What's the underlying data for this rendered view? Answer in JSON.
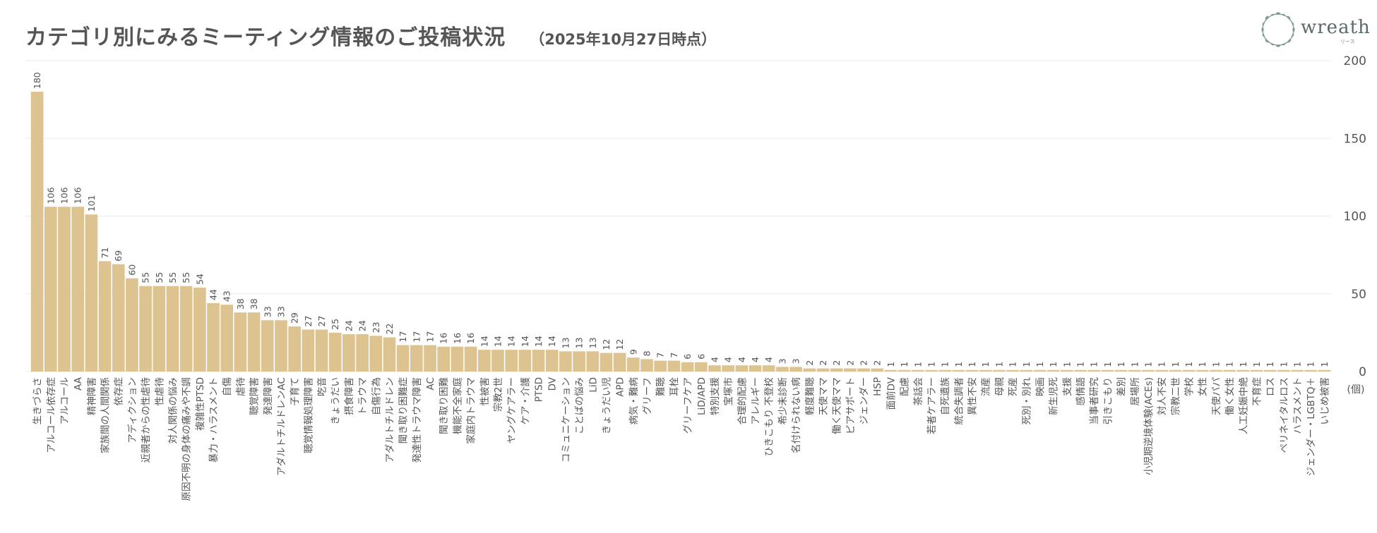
{
  "title": "カテゴリ別にみるミーティング情報のご投稿状況",
  "subtitle": "（2025年10月27日時点）",
  "logo": {
    "text": "wreath",
    "sub": "リース",
    "icon": "wreath-icon"
  },
  "colors": {
    "bar": "#DCC38F",
    "grid": "#EBEBEB",
    "text": "#555555"
  },
  "chart_data": {
    "type": "bar",
    "title": "カテゴリ別にみるミーティング情報のご投稿状況",
    "subtitle": "（2025年10月27日時点）",
    "ylim": [
      0,
      200
    ],
    "yticks": [
      0,
      50,
      100,
      150,
      200
    ],
    "yunit": "(個)",
    "grid": true,
    "yaxis_position": "right",
    "categories": [
      "生きづらさ",
      "アルコール依存症",
      "アルコール",
      "AA",
      "精神障害",
      "家族間の人間関係",
      "依存症",
      "アディクション",
      "近親者からの性虐待",
      "性虐待",
      "対人関係の悩み",
      "原因不明の身体の痛みや不調",
      "複雑性PTSD",
      "暴力・ハラスメント",
      "自傷",
      "虐待",
      "聴覚障害",
      "発達障害",
      "アダルトチルドレンAC",
      "子育て",
      "聴覚情報処理障害",
      "吃音",
      "きょうだい",
      "摂食障害",
      "トラウマ",
      "自傷行為",
      "アダルトチルドレン",
      "聞き取り困難症",
      "発達性トラウマ障害",
      "AC",
      "聞き取り困難",
      "機能不全家庭",
      "家庭内トラウマ",
      "性被害",
      "宗教2世",
      "ヤングケアラー",
      "ケア・介護",
      "PTSD",
      "DV",
      "コミュニケーション",
      "ことばの悩み",
      "LiD",
      "きょうだい児",
      "APD",
      "病気・難病",
      "グリーフ",
      "難聴",
      "耳栓",
      "グリーフケア",
      "LiD/APD",
      "特別支援",
      "宝塚市",
      "合理的配慮",
      "アレルギー",
      "ひきこもり 不登校",
      "希少未診断",
      "名付けられない病",
      "軽度難聴",
      "天使ママ",
      "働く天使ママ",
      "ピアサポート",
      "ジェンダー",
      "HSP",
      "面前DV",
      "配慮",
      "茶話会",
      "若者ケアラー",
      "自死遺族",
      "統合失調者",
      "異性不安",
      "流産",
      "母親",
      "死産",
      "死別・別れ",
      "映画",
      "新生児死",
      "支援",
      "感情語",
      "当事者研究",
      "引きこもり",
      "差別",
      "居場所",
      "小児期逆境体験(ACEs)",
      "対人不安",
      "宗教二世",
      "学校",
      "女性",
      "天使パパ",
      "働く女性",
      "人工妊娠中絶",
      "不育症",
      "ロス",
      "ペリネイタルロス",
      "ハラスメント",
      "ジェンダー・LGBTQ＋",
      "いじめ被害"
    ],
    "values": [
      180,
      106,
      106,
      106,
      101,
      71,
      69,
      60,
      55,
      55,
      55,
      55,
      54,
      44,
      43,
      38,
      38,
      33,
      33,
      29,
      27,
      27,
      25,
      24,
      24,
      23,
      22,
      17,
      17,
      17,
      16,
      16,
      16,
      14,
      14,
      14,
      14,
      14,
      14,
      13,
      13,
      13,
      12,
      12,
      9,
      8,
      7,
      7,
      6,
      6,
      4,
      4,
      4,
      4,
      4,
      3,
      3,
      2,
      2,
      2,
      2,
      2,
      2,
      1,
      1,
      1,
      1,
      1,
      1,
      1,
      1,
      1,
      1,
      1,
      1,
      1,
      1,
      1,
      1,
      1,
      1,
      1,
      1,
      1,
      1,
      1,
      1,
      1,
      1,
      1,
      1,
      1,
      1,
      1,
      1,
      1
    ]
  }
}
